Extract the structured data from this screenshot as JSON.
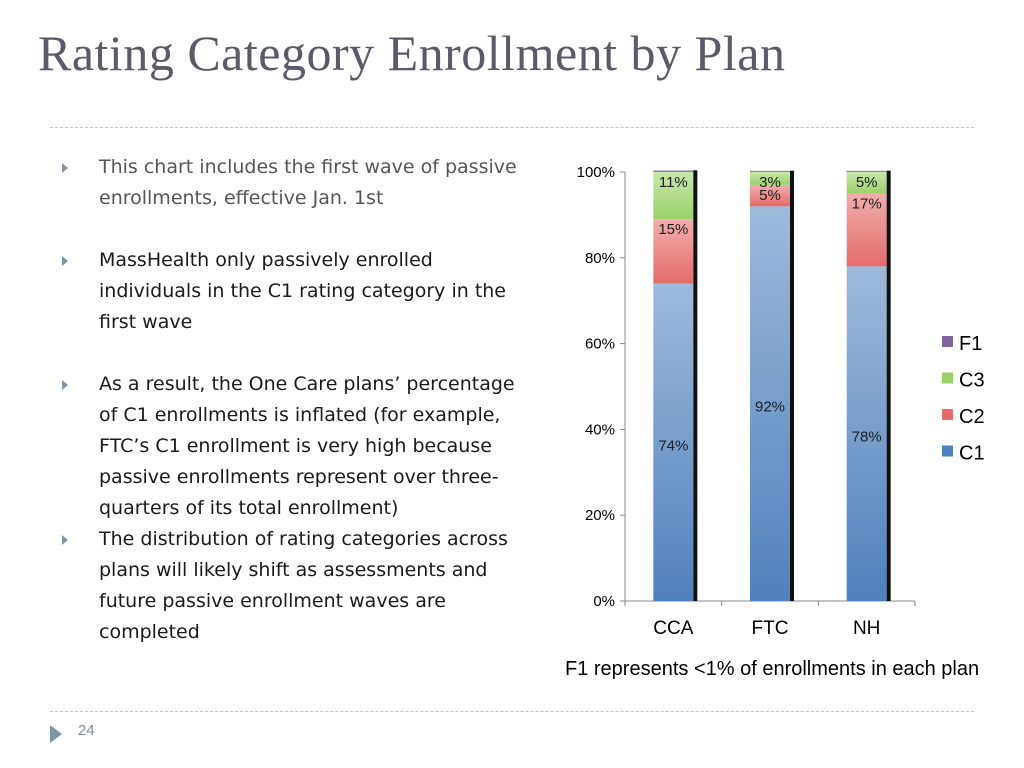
{
  "slide": {
    "title": "Rating Category Enrollment by Plan",
    "bullets": [
      "This chart includes the first wave of passive enrollments, effective Jan. 1st",
      "MassHealth only passively enrolled individuals in the C1 rating category in the first wave",
      "As a result, the One Care plans’ percentage of C1 enrollments is inflated (for example, FTC’s C1  enrollment is very  high because passive enrollments represent over three-quarters of its total enrollment)",
      "The distribution of rating categories across plans will likely shift as assessments and future passive enrollment waves are completed"
    ],
    "note": "F1 represents <1% of enrollments in each plan",
    "page_number": "24"
  },
  "chart_data": {
    "type": "bar",
    "stacked": true,
    "categories": [
      "CCA",
      "FTC",
      "NH"
    ],
    "series": [
      {
        "name": "C1",
        "values": [
          74,
          92,
          78
        ],
        "labels": [
          "74%",
          "92%",
          "78%"
        ],
        "color": "#4f81bd"
      },
      {
        "name": "C2",
        "values": [
          15,
          5,
          17
        ],
        "labels": [
          "15%",
          "5%",
          "17%"
        ],
        "color": "#e46c6a"
      },
      {
        "name": "C3",
        "values": [
          11,
          3,
          5
        ],
        "labels": [
          "11%",
          "3%",
          "5%"
        ],
        "color": "#9bd168"
      },
      {
        "name": "F1",
        "values": [
          0.4,
          0.3,
          0.3
        ],
        "labels": [
          "",
          "",
          ""
        ],
        "color": "#8064a2"
      }
    ],
    "ylim": [
      0,
      100
    ],
    "yticks": [
      "0%",
      "20%",
      "40%",
      "60%",
      "80%",
      "100%"
    ],
    "legend_order": [
      "F1",
      "C3",
      "C2",
      "C1"
    ],
    "legend_position": "right",
    "grid": false
  }
}
